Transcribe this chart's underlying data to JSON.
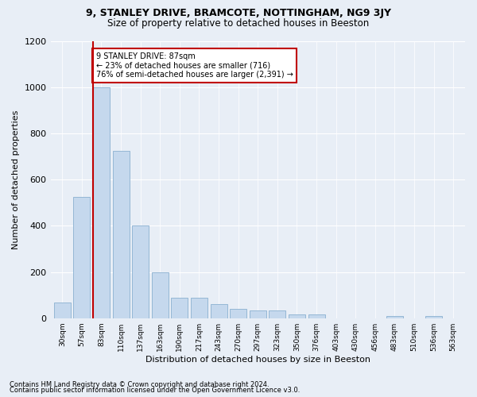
{
  "title1": "9, STANLEY DRIVE, BRAMCOTE, NOTTINGHAM, NG9 3JY",
  "title2": "Size of property relative to detached houses in Beeston",
  "xlabel": "Distribution of detached houses by size in Beeston",
  "ylabel": "Number of detached properties",
  "categories": [
    "30sqm",
    "57sqm",
    "83sqm",
    "110sqm",
    "137sqm",
    "163sqm",
    "190sqm",
    "217sqm",
    "243sqm",
    "270sqm",
    "297sqm",
    "323sqm",
    "350sqm",
    "376sqm",
    "403sqm",
    "430sqm",
    "456sqm",
    "483sqm",
    "510sqm",
    "536sqm",
    "563sqm"
  ],
  "values": [
    67,
    525,
    1000,
    725,
    400,
    197,
    90,
    90,
    60,
    40,
    32,
    32,
    17,
    17,
    0,
    0,
    0,
    10,
    0,
    10,
    0
  ],
  "bar_color": "#c5d8ed",
  "bar_edge_color": "#8ab0d0",
  "highlight_bar_index": 2,
  "annotation_text": "9 STANLEY DRIVE: 87sqm\n← 23% of detached houses are smaller (716)\n76% of semi-detached houses are larger (2,391) →",
  "annotation_box_color": "#ffffff",
  "annotation_box_edge_color": "#c00000",
  "ylim": [
    0,
    1200
  ],
  "yticks": [
    0,
    200,
    400,
    600,
    800,
    1000,
    1200
  ],
  "footer1": "Contains HM Land Registry data © Crown copyright and database right 2024.",
  "footer2": "Contains public sector information licensed under the Open Government Licence v3.0.",
  "bg_color": "#e8eef6",
  "grid_color": "#ffffff"
}
